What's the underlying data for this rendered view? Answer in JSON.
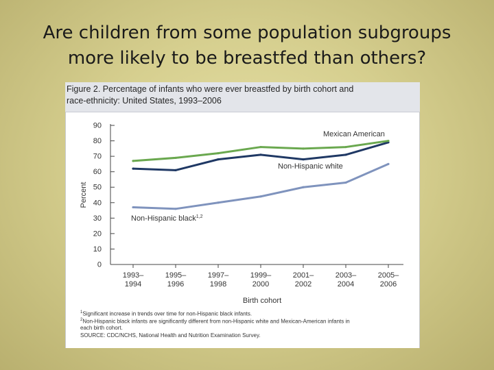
{
  "slide": {
    "title_line1": "Are children from some population subgroups",
    "title_line2": "more likely to be breastfed than others?"
  },
  "figure": {
    "title_line1": "Figure 2. Percentage of infants who were ever breastfed by birth cohort and",
    "title_line2": "race-ethnicity: United States, 1993–2006",
    "footnotes": {
      "note1_mark": "1",
      "note1": "Significant increase in trends over time for non-Hispanic black infants.",
      "note2_mark": "2",
      "note2_line1": "Non-Hispanic black infants are significantly different from non-Hispanic white and Mexican-American infants in",
      "note2_line2": "each birth cohort.",
      "source": "SOURCE: CDC/NCHS, National Health and Nutrition Examination Survey."
    }
  },
  "chart_data": {
    "type": "line",
    "title": "Figure 2. Percentage of infants who were ever breastfed by birth cohort and race-ethnicity: United States, 1993–2006",
    "xlabel": "Birth cohort",
    "ylabel": "Percent",
    "ylim": [
      0,
      90
    ],
    "yticks": [
      0,
      10,
      20,
      30,
      40,
      50,
      60,
      70,
      80,
      90
    ],
    "grid": false,
    "categories": [
      [
        "1993–",
        "1994"
      ],
      [
        "1995–",
        "1996"
      ],
      [
        "1997–",
        "1998"
      ],
      [
        "1999–",
        "2000"
      ],
      [
        "2001–",
        "2002"
      ],
      [
        "2003–",
        "2004"
      ],
      [
        "2005–",
        "2006"
      ]
    ],
    "series": [
      {
        "name": "Mexican American",
        "color": "#6aa84f",
        "values": [
          67,
          69,
          72,
          76,
          75,
          76,
          80
        ]
      },
      {
        "name": "Non-Hispanic white",
        "color": "#1f3864",
        "values": [
          62,
          61,
          68,
          71,
          68,
          71,
          79
        ]
      },
      {
        "name": "Non-Hispanic black",
        "name_sup": "1,2",
        "color": "#7f93bd",
        "values": [
          37,
          36,
          40,
          44,
          50,
          53,
          65
        ]
      }
    ]
  }
}
